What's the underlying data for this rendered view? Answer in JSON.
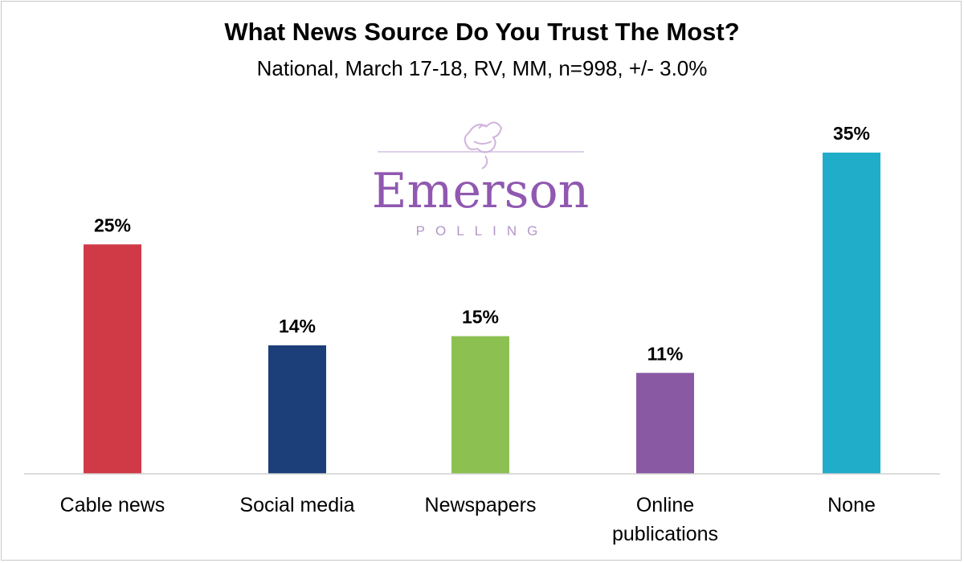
{
  "chart_data": {
    "type": "bar",
    "title": "What News Source Do You Trust The Most?",
    "subtitle": "National, March 17-18, RV, MM, n=998, +/- 3.0%",
    "categories": [
      "Cable news",
      "Social media",
      "Newspapers",
      "Online publications",
      "None"
    ],
    "category_lines": [
      [
        "Cable news"
      ],
      [
        "Social media"
      ],
      [
        "Newspapers"
      ],
      [
        "Online",
        "publications"
      ],
      [
        "None"
      ]
    ],
    "values": [
      25,
      14,
      15,
      11,
      35
    ],
    "data_labels": [
      "25%",
      "14%",
      "15%",
      "11%",
      "35%"
    ],
    "colors": [
      "#cf3a46",
      "#1c3f7a",
      "#8cc152",
      "#8a59a4",
      "#1fadc9"
    ],
    "ylim": [
      0,
      35
    ],
    "grid": false,
    "legend": "none"
  },
  "watermark": {
    "brand": "Emerson",
    "tagline": "POLLING",
    "color": "#7d3ca3"
  }
}
